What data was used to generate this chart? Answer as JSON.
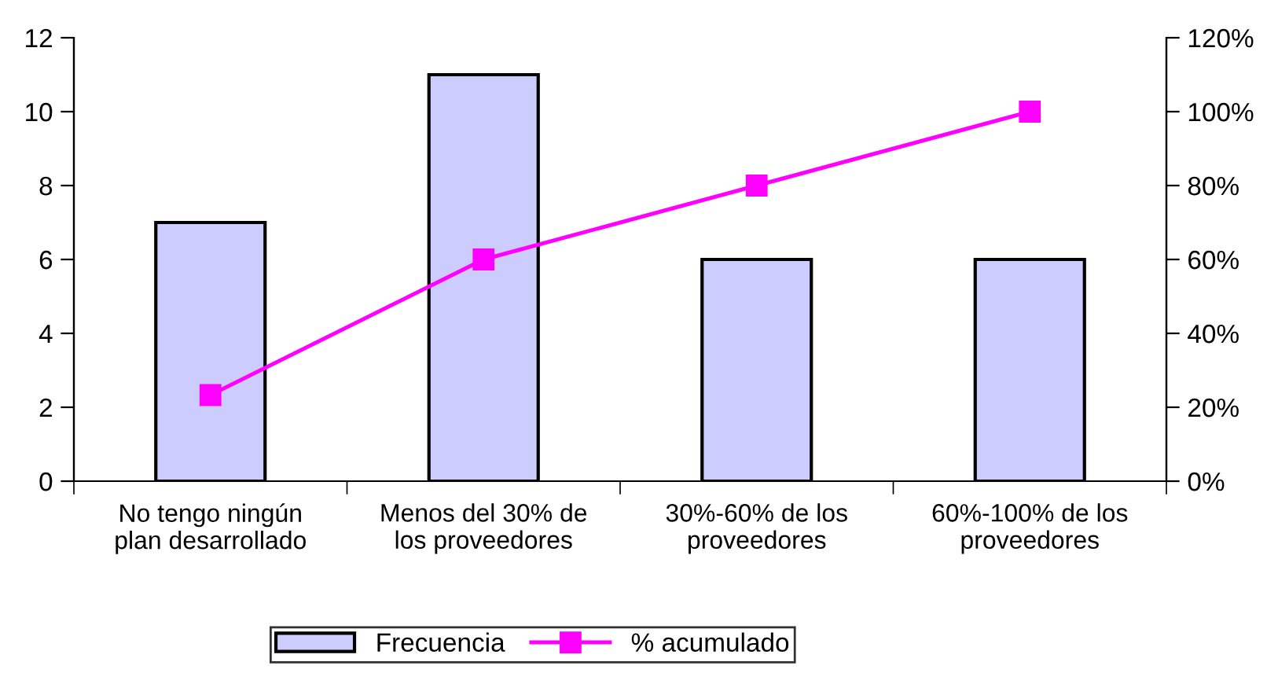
{
  "chart_data": {
    "type": "bar",
    "categories": [
      "No tengo ningún plan desarrollado",
      "Menos del 30% de los proveedores",
      "30%-60% de los proveedores",
      "60%-100% de los proveedores"
    ],
    "series": [
      {
        "name": "Frecuencia",
        "color": "#ccccff",
        "values": [
          7,
          11,
          6,
          6
        ]
      },
      {
        "name": "% acumulado",
        "type": "line",
        "axis": "y2",
        "color": "#ff00ff",
        "marker": "square",
        "line_style": "solid",
        "values": [
          23.3,
          60,
          80,
          100
        ]
      }
    ],
    "ylim": [
      0,
      12
    ],
    "yticks": [
      0,
      2,
      4,
      6,
      8,
      10,
      12
    ],
    "y2lim": [
      0,
      120
    ],
    "y2ticks": [
      {
        "value": 0,
        "label": "0%"
      },
      {
        "value": 20,
        "label": "20%"
      },
      {
        "value": 40,
        "label": "40%"
      },
      {
        "value": 60,
        "label": "60%"
      },
      {
        "value": 80,
        "label": "80%"
      },
      {
        "value": 100,
        "label": "100%"
      },
      {
        "value": 120,
        "label": "120%"
      }
    ],
    "grid": false,
    "legend": "bottom"
  }
}
